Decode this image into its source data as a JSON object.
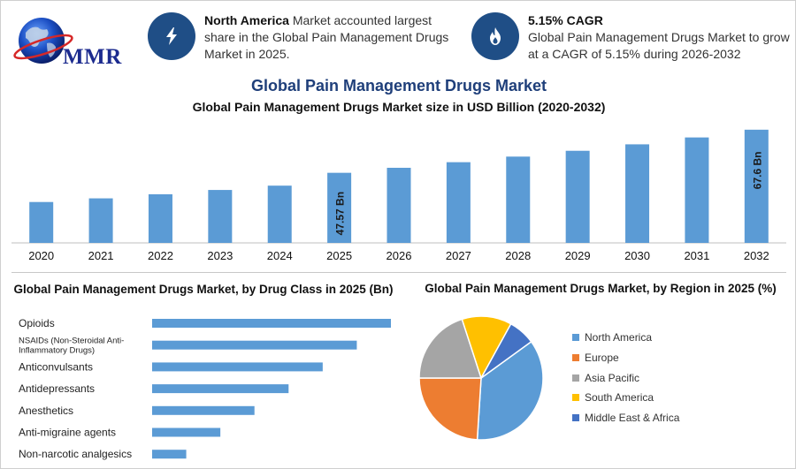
{
  "header": {
    "logo_text": "MMR",
    "info1": {
      "icon": "lightning-bolt-icon",
      "bold": "North America",
      "text": " Market accounted largest share in the Global Pain Management Drugs Market in 2025."
    },
    "info2": {
      "icon": "flame-icon",
      "bold": "5.15% CAGR",
      "text": "Global Pain Management Drugs Market to grow at a CAGR of 5.15% during 2026-2032"
    }
  },
  "colors": {
    "bar": "#5b9bd5",
    "icon_circle": "#1f4e86",
    "title": "#1f3f7a"
  },
  "chart_data": [
    {
      "type": "bar",
      "title": "Global Pain Management Drugs Market",
      "subtitle": "Global Pain Management Drugs Market size in USD Billion (2020-2032)",
      "categories": [
        "2020",
        "2021",
        "2022",
        "2023",
        "2024",
        "2025",
        "2026",
        "2027",
        "2028",
        "2029",
        "2030",
        "2031",
        "2032"
      ],
      "values": [
        34.0,
        35.7,
        37.6,
        39.6,
        41.6,
        47.57,
        49.9,
        52.5,
        55.1,
        57.8,
        60.8,
        64.0,
        67.6
      ],
      "labels": {
        "2025": "47.57 Bn",
        "2032": "67.6 Bn"
      },
      "ylim": [
        15,
        70
      ],
      "grid": false
    },
    {
      "type": "bar",
      "orientation": "horizontal",
      "title": "Global Pain Management Drugs Market, by Drug Class in 2025 (Bn)",
      "categories": [
        [
          "Opioids"
        ],
        [
          "NSAIDs (Non-Steroidal Anti-",
          "Inflammatory Drugs)"
        ],
        [
          "Anticonvulsants"
        ],
        [
          "Antidepressants"
        ],
        [
          "Anesthetics"
        ],
        [
          "Anti-migraine agents"
        ],
        [
          "Non-narcotic analgesics"
        ]
      ],
      "values": [
        14.0,
        12.0,
        10.0,
        8.0,
        6.0,
        4.0,
        2.0
      ],
      "xlim": [
        0,
        14.0
      ]
    },
    {
      "type": "pie",
      "title": "Global Pain Management Drugs Market, by Region in 2025 (%)",
      "slices": [
        {
          "label": "North America",
          "value": 36,
          "color": "#5b9bd5"
        },
        {
          "label": "Europe",
          "value": 24,
          "color": "#ed7d31"
        },
        {
          "label": "Asia Pacific",
          "value": 20,
          "color": "#a5a5a5"
        },
        {
          "label": "South America",
          "value": 13,
          "color": "#ffc000"
        },
        {
          "label": "Middle East & Africa",
          "value": 7,
          "color": "#4472c4"
        }
      ],
      "legend": "right"
    }
  ]
}
